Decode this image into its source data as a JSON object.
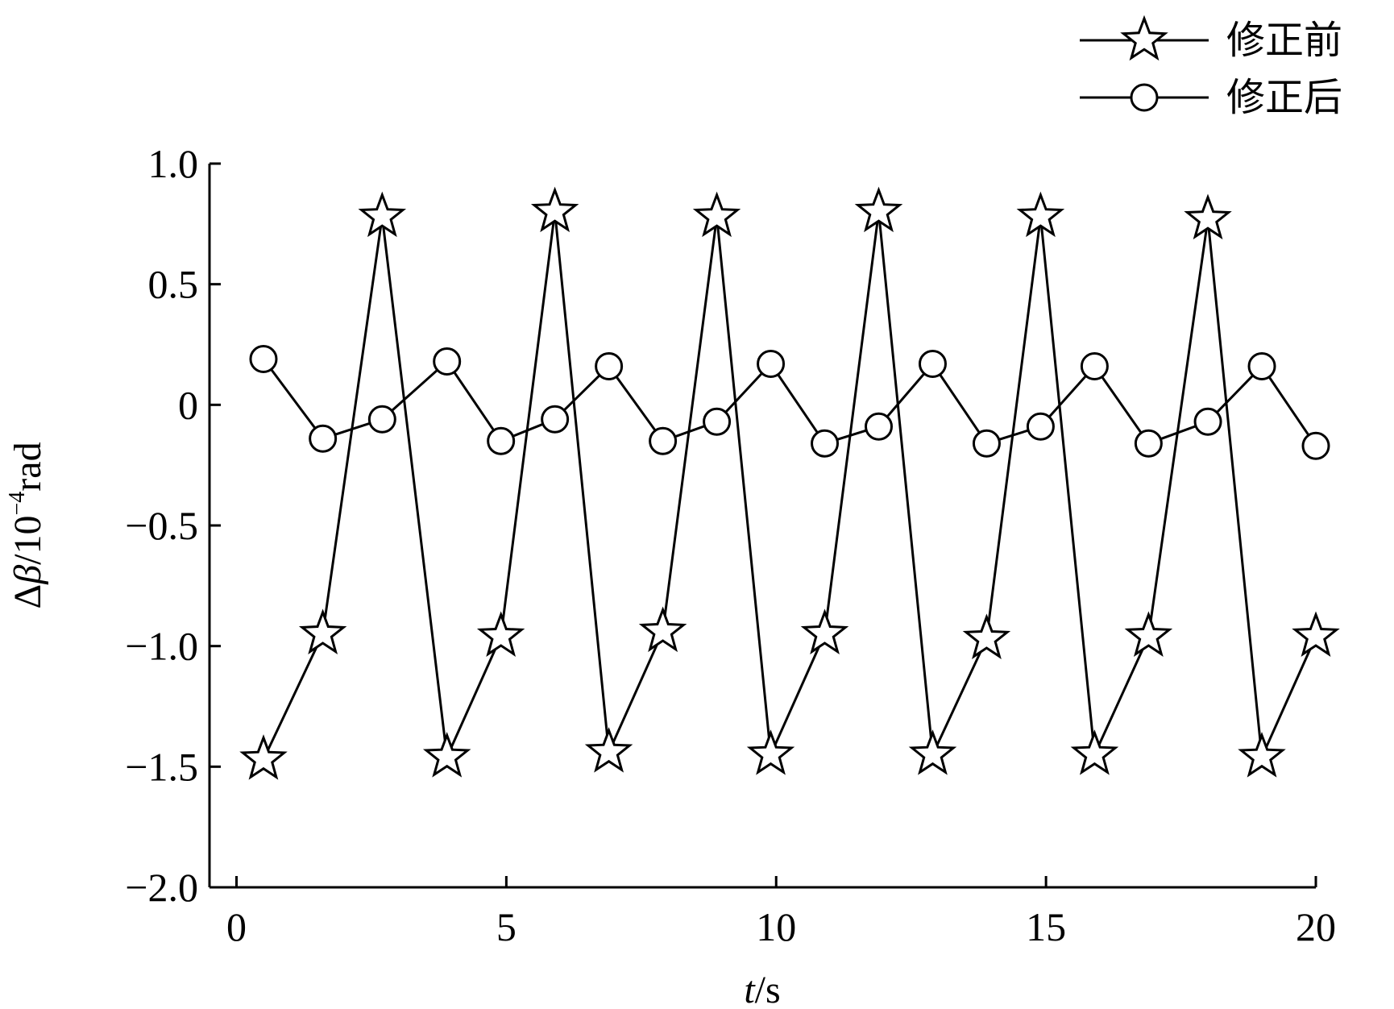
{
  "chart_data": {
    "type": "line",
    "xlabel_italic": "t",
    "xlabel_rest": "/s",
    "ylabel_delta": "Δ",
    "ylabel_beta": "β",
    "ylabel_mid": "/10",
    "ylabel_exp": "−4",
    "ylabel_unit": "rad",
    "xlim": [
      -0.5,
      20
    ],
    "ylim": [
      -2.0,
      1.0
    ],
    "xticks": [
      0,
      5,
      10,
      15,
      20
    ],
    "xtick_labels": [
      "0",
      "5",
      "10",
      "15",
      "20"
    ],
    "yticks": [
      1.0,
      0.5,
      0,
      -0.5,
      -1.0,
      -1.5,
      -2.0
    ],
    "ytick_labels": [
      "1.0",
      "0.5",
      "0",
      "−0.5",
      "−1.0",
      "−1.5",
      "−2.0"
    ],
    "grid": false,
    "legend_position": "top-right",
    "series": [
      {
        "name": "修正前",
        "marker": "star",
        "x": [
          0.5,
          1.6,
          2.7,
          3.9,
          4.9,
          5.9,
          6.9,
          7.9,
          8.9,
          9.9,
          10.9,
          11.9,
          12.9,
          13.9,
          14.9,
          15.9,
          16.9,
          18.0,
          19.0,
          20.0
        ],
        "y": [
          -1.47,
          -0.95,
          0.78,
          -1.46,
          -0.96,
          0.8,
          -1.44,
          -0.94,
          0.78,
          -1.45,
          -0.95,
          0.8,
          -1.45,
          -0.97,
          0.78,
          -1.45,
          -0.96,
          0.77,
          -1.46,
          -0.96
        ]
      },
      {
        "name": "修正后",
        "marker": "circle",
        "x": [
          0.5,
          1.6,
          2.7,
          3.9,
          4.9,
          5.9,
          6.9,
          7.9,
          8.9,
          9.9,
          10.9,
          11.9,
          12.9,
          13.9,
          14.9,
          15.9,
          16.9,
          18.0,
          19.0,
          20.0
        ],
        "y": [
          0.19,
          -0.14,
          -0.06,
          0.18,
          -0.15,
          -0.06,
          0.16,
          -0.15,
          -0.07,
          0.17,
          -0.16,
          -0.09,
          0.17,
          -0.16,
          -0.09,
          0.16,
          -0.16,
          -0.07,
          0.16,
          -0.17
        ]
      }
    ]
  }
}
